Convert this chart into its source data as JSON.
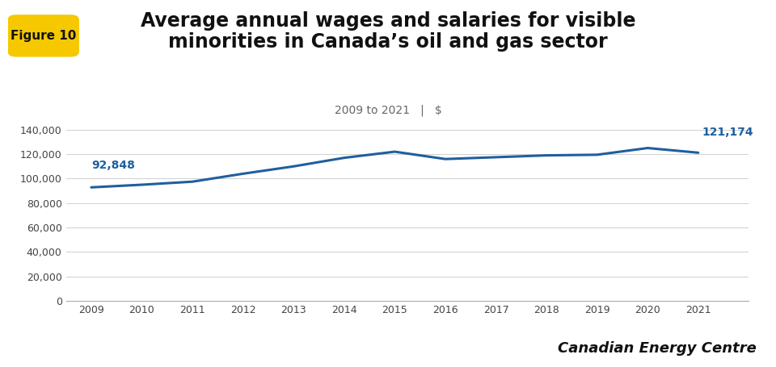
{
  "title_line1": "Average annual wages and salaries for visible",
  "title_line2": "minorities in Canada’s oil and gas sector",
  "subtitle": "2009 to 2021   |   $",
  "figure_label": "Figure 10",
  "years": [
    2009,
    2010,
    2011,
    2012,
    2013,
    2014,
    2015,
    2016,
    2017,
    2018,
    2019,
    2020,
    2021
  ],
  "values": [
    92848,
    95000,
    97500,
    104000,
    110000,
    117000,
    122000,
    116000,
    117500,
    119000,
    119500,
    125000,
    121174
  ],
  "line_color": "#1f5f9e",
  "line_width": 2.2,
  "annotation_first": "92,848",
  "annotation_last": "121,174",
  "yticks": [
    0,
    20000,
    40000,
    60000,
    80000,
    100000,
    120000,
    140000
  ],
  "ytick_labels": [
    "0",
    "20,000",
    "40,000",
    "60,000",
    "80,000",
    "100,000",
    "120,000",
    "140,000"
  ],
  "ylim": [
    0,
    150000
  ],
  "xlim_left": 2008.5,
  "xlim_right": 2022.0,
  "background_color": "#ffffff",
  "grid_color": "#d0d0d0",
  "brand_text": "Canadian Energy Centre",
  "title_fontsize": 17,
  "subtitle_fontsize": 10,
  "axis_fontsize": 9,
  "annotation_fontsize": 10,
  "brand_fontsize": 13,
  "fig_label_bg": "#f5c800",
  "fig_label_fontsize": 11
}
